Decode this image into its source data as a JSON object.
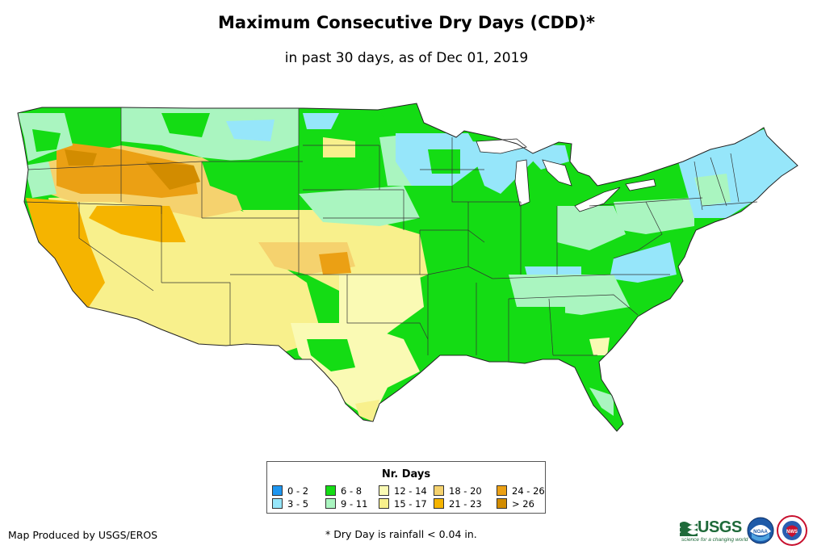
{
  "title": "Maximum Consecutive Dry Days (CDD)*",
  "subtitle": "in past 30 days, as of Dec 01, 2019",
  "legend": {
    "title": "Nr. Days",
    "items": [
      {
        "label": "0 - 2",
        "color": "#1e96f0"
      },
      {
        "label": "3 - 5",
        "color": "#96e6fa"
      },
      {
        "label": "6 - 8",
        "color": "#14dc14"
      },
      {
        "label": "9 - 11",
        "color": "#aaf5c0"
      },
      {
        "label": "12 - 14",
        "color": "#fafab4"
      },
      {
        "label": "15 - 17",
        "color": "#f8f08c"
      },
      {
        "label": "18 - 20",
        "color": "#f5d26e"
      },
      {
        "label": "21 - 23",
        "color": "#f5b400"
      },
      {
        "label": "24 - 26",
        "color": "#eba014"
      },
      {
        "label": "> 26",
        "color": "#d28c00"
      }
    ]
  },
  "footer": {
    "producer": "Map Produced by USGS/EROS",
    "footnote": "* Dry Day is rainfall < 0.04 in."
  },
  "logos": {
    "usgs_word": "USGS",
    "usgs_tagline": "science for a changing world",
    "noaa_text": "NOAA",
    "nws_text": "NWS"
  }
}
